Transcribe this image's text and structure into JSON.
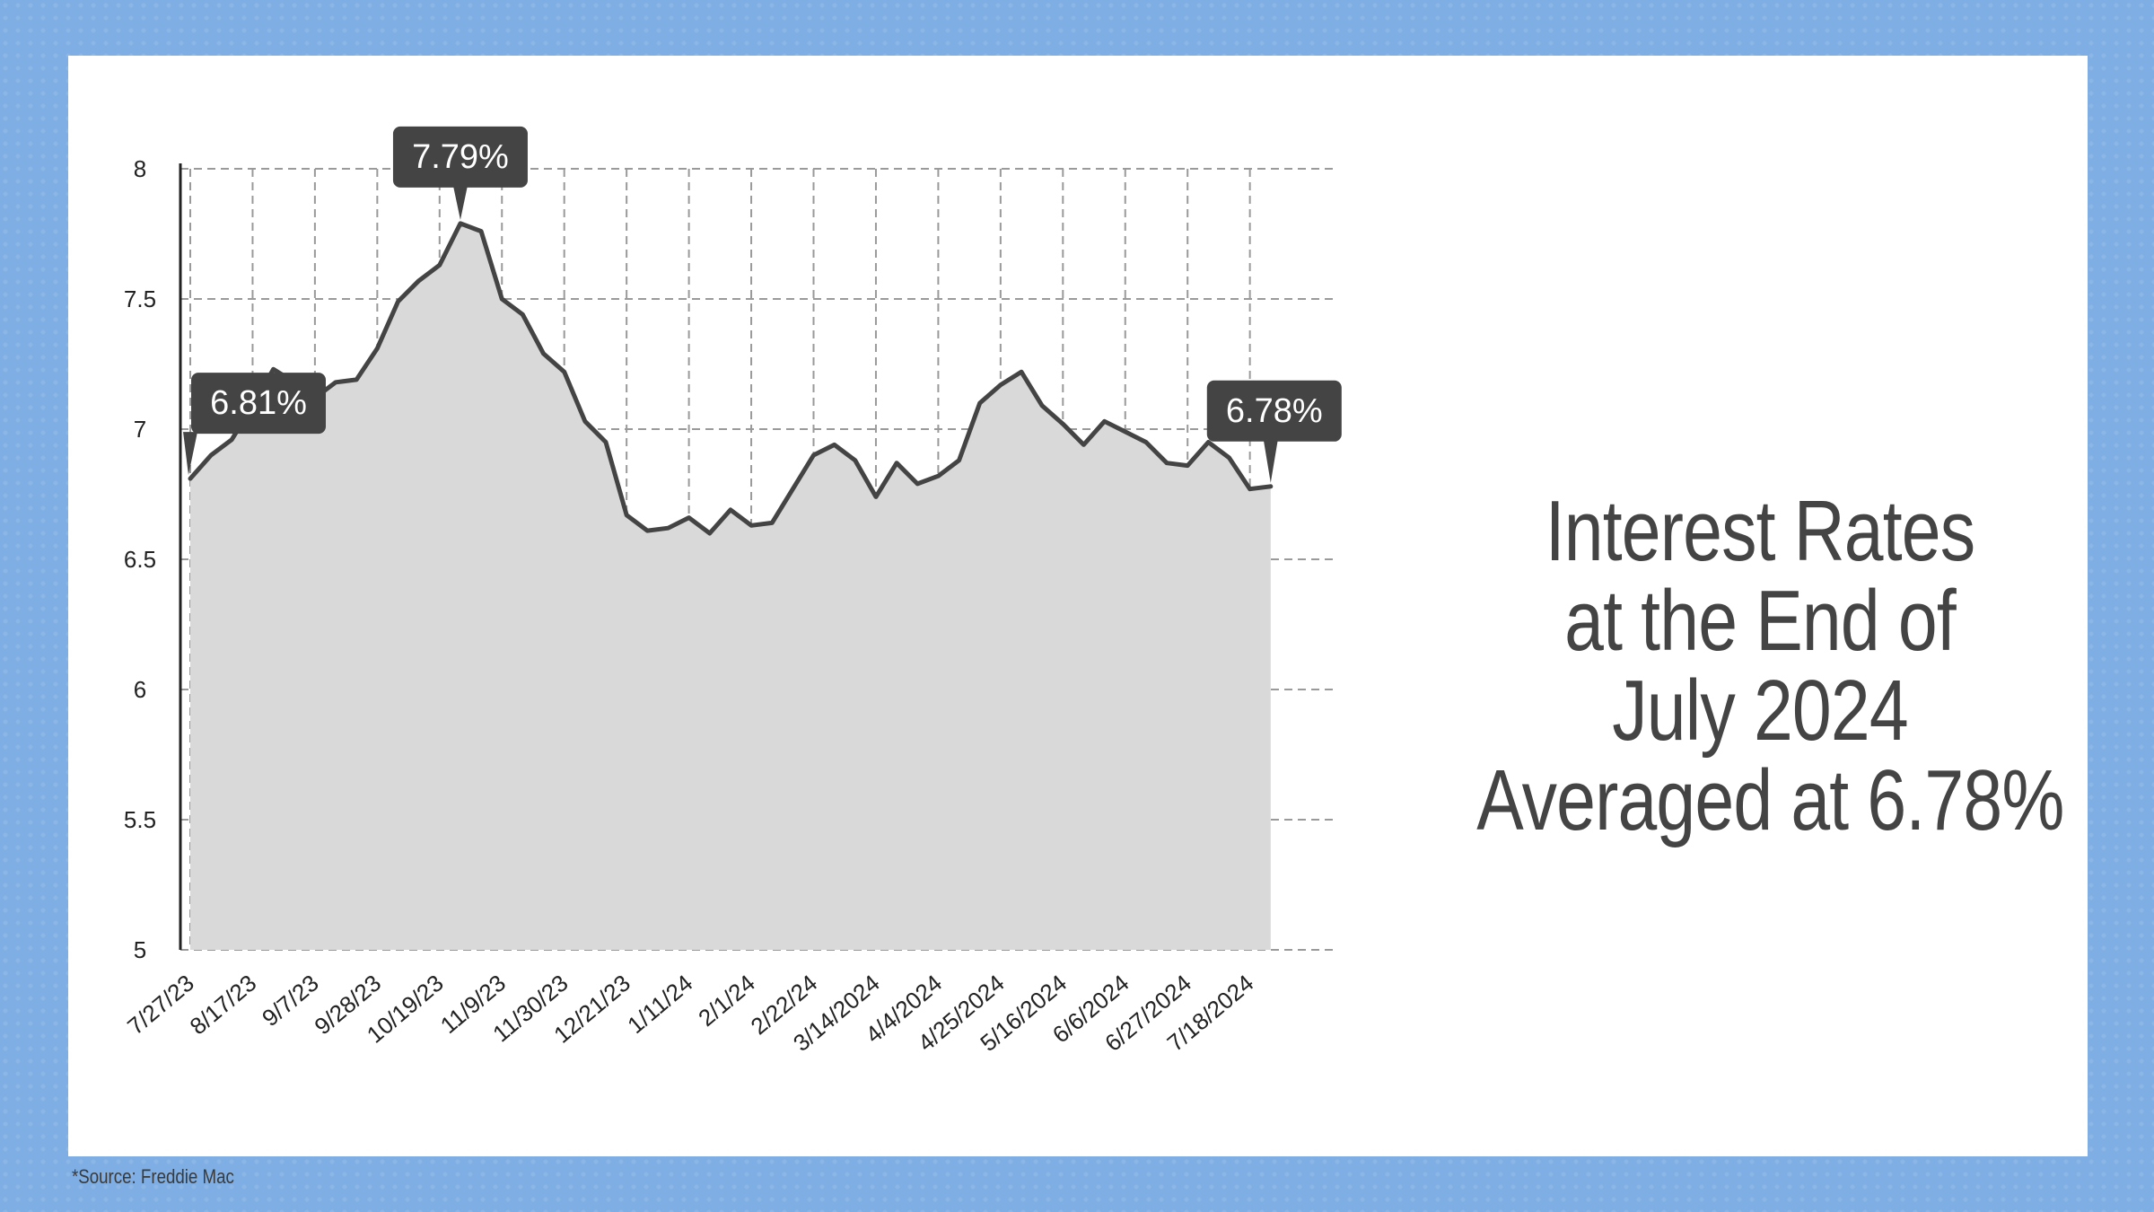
{
  "headline": {
    "line1": "Interest Rates",
    "line2": "at the End of",
    "line3": "July 2024",
    "line4": "Averaged at 6.78%"
  },
  "source": "*Source: Freddie Mac",
  "colors": {
    "background": "#7eaee3",
    "card": "#ffffff",
    "line": "#444444",
    "area": "#d9d9d9",
    "callout": "#444444"
  },
  "chart_data": {
    "type": "area",
    "title": "",
    "xlabel": "",
    "ylabel": "",
    "ylim": [
      5,
      8
    ],
    "yticks": [
      "5",
      "5.5",
      "6",
      "6.5",
      "7",
      "7.5",
      "8"
    ],
    "grid": true,
    "x_tick_labels": [
      "7/27/23",
      "8/17/23",
      "9/7/23",
      "9/28/23",
      "10/19/23",
      "11/9/23",
      "11/30/23",
      "12/21/23",
      "1/11/24",
      "2/1/24",
      "2/22/24",
      "3/14/2024",
      "4/4/2024",
      "4/25/2024",
      "5/16/2024",
      "6/6/2024",
      "6/27/2024",
      "7/18/2024"
    ],
    "series": [
      {
        "values": [
          6.81,
          6.9,
          6.96,
          7.09,
          7.23,
          7.18,
          7.12,
          7.18,
          7.19,
          7.31,
          7.49,
          7.57,
          7.63,
          7.79,
          7.76,
          7.5,
          7.44,
          7.29,
          7.22,
          7.03,
          6.95,
          6.67,
          6.61,
          6.62,
          6.66,
          6.6,
          6.69,
          6.63,
          6.64,
          6.77,
          6.9,
          6.94,
          6.88,
          6.74,
          6.87,
          6.79,
          6.82,
          6.88,
          7.1,
          7.17,
          7.22,
          7.09,
          7.02,
          6.94,
          7.03,
          6.99,
          6.95,
          6.87,
          6.86,
          6.95,
          6.89,
          6.77,
          6.78
        ]
      }
    ],
    "callouts": [
      {
        "label": "6.81%",
        "index": 0
      },
      {
        "label": "7.79%",
        "index": 13
      },
      {
        "label": "6.78%",
        "index": 52
      }
    ]
  }
}
